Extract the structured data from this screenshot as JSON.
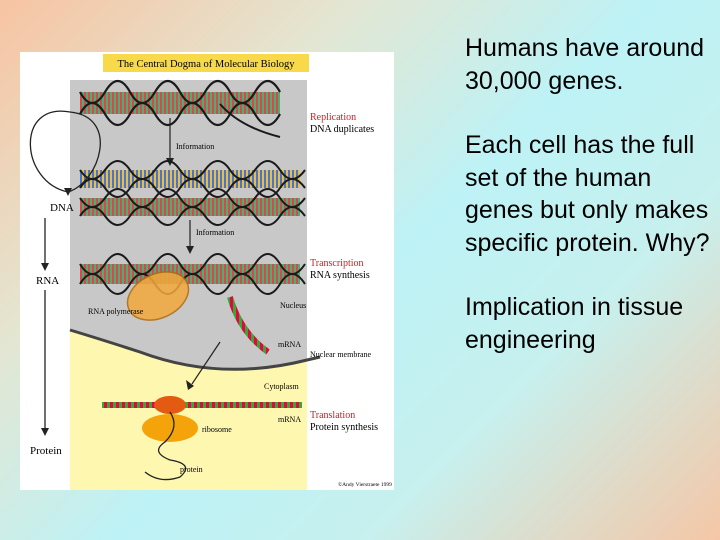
{
  "figure": {
    "title": "The Central Dogma of Molecular Biology",
    "left_flow": [
      "DNA",
      "RNA",
      "Protein"
    ],
    "stages": {
      "replication": {
        "title": "Replication",
        "subtitle": "DNA duplicates"
      },
      "transcription": {
        "title": "Transcription",
        "subtitle": "RNA synthesis"
      },
      "translation": {
        "title": "Translation",
        "subtitle": "Protein synthesis"
      }
    },
    "labels": {
      "information_1": "Information",
      "information_2": "Information",
      "rna_polymerase": "RNA polymerase",
      "nucleus": "Nucleus",
      "mrna_1": "mRNA",
      "nuclear_membrane": "Nuclear membrane",
      "cytoplasm": "Cytoplasm",
      "mrna_2": "mRNA",
      "ribosome": "ribosome",
      "protein": "protein",
      "credit": "©Andy Vierstraete 1999"
    },
    "colors": {
      "nucleus_bg": "#c8c8c8",
      "cytoplasm_bg": "#fdf7b0",
      "title_bg": "#f7d94a",
      "stage_red": "#d02020",
      "ribosome": "#f5a30a",
      "polymerase": "#f2a93b"
    }
  },
  "text": {
    "p1": "Humans have around 30,000 genes.",
    "p2": "Each cell has the full set of the human genes but only makes specific protein. Why?",
    "p3": "Implication in tissue engineering"
  }
}
